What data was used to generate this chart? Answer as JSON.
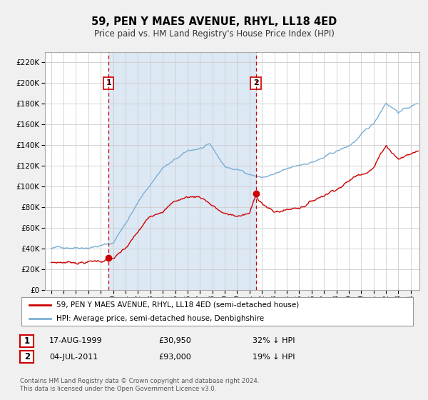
{
  "title": "59, PEN Y MAES AVENUE, RHYL, LL18 4ED",
  "subtitle": "Price paid vs. HM Land Registry's House Price Index (HPI)",
  "bg_color": "#f0f0f0",
  "plot_bg_color": "#ffffff",
  "plot_bg_shaded": "#dde8f5",
  "grid_color": "#cccccc",
  "red_line_color": "#cc0000",
  "blue_line_color": "#7bafd4",
  "sale1_date_num": 1999.63,
  "sale1_price": 30950,
  "sale2_date_num": 2011.5,
  "sale2_price": 93000,
  "ylim_min": 0,
  "ylim_max": 230000,
  "xlim_min": 1994.5,
  "xlim_max": 2024.7,
  "legend_red": "59, PEN Y MAES AVENUE, RHYL, LL18 4ED (semi-detached house)",
  "legend_blue": "HPI: Average price, semi-detached house, Denbighshire",
  "annot1_date": "17-AUG-1999",
  "annot1_price": "£30,950",
  "annot1_hpi": "32% ↓ HPI",
  "annot2_date": "04-JUL-2011",
  "annot2_price": "£93,000",
  "annot2_hpi": "19% ↓ HPI",
  "footer1": "Contains HM Land Registry data © Crown copyright and database right 2024.",
  "footer2": "This data is licensed under the Open Government Licence v3.0."
}
